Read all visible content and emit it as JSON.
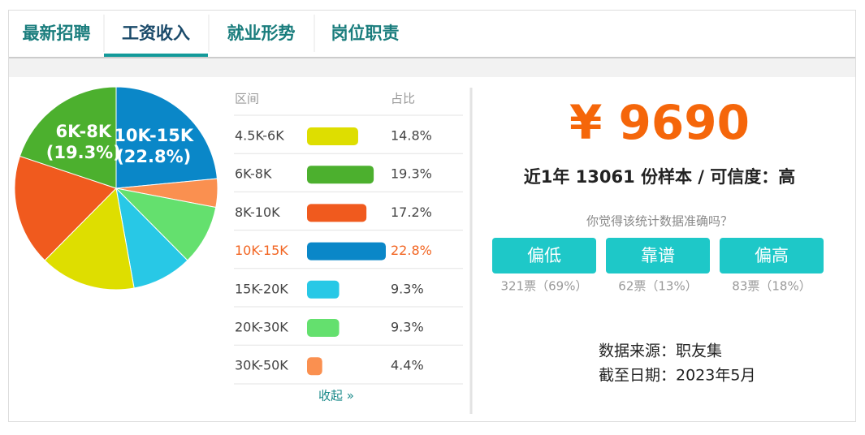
{
  "tabs": {
    "items": [
      "最新招聘",
      "工资收入",
      "就业形势",
      "岗位职责"
    ],
    "active": 1
  },
  "chart_data": {
    "type": "pie",
    "categories": [
      "4.5K-6K",
      "6K-8K",
      "8K-10K",
      "10K-15K",
      "15K-20K",
      "20K-30K",
      "30K-50K"
    ],
    "values": [
      14.8,
      19.3,
      17.2,
      22.8,
      9.3,
      9.3,
      4.4
    ],
    "value_labels": [
      "14.8%",
      "19.3%",
      "17.2%",
      "22.8%",
      "9.3%",
      "9.3%",
      "4.4%"
    ],
    "colors": [
      "#dede00",
      "#4cb02e",
      "#f05a1e",
      "#0a87c8",
      "#28c8e6",
      "#64e06e",
      "#fa9050"
    ],
    "slice_labels": [
      null,
      [
        "6K-8K",
        "(19.3%)"
      ],
      null,
      [
        "10K-15K",
        "(22.8%)"
      ],
      null,
      null,
      null
    ],
    "header": [
      "区间",
      "占比"
    ],
    "highlight": 3,
    "collapse": "收起 »"
  },
  "salary": {
    "amount": "¥ 9690",
    "summary": "近1年 13061 份样本 / 可信度：高"
  },
  "feedback": {
    "question": "你觉得该统计数据准确吗？",
    "options": [
      {
        "label": "偏低",
        "votes": "321票（69%）"
      },
      {
        "label": "靠谱",
        "votes": "62票（13%）"
      },
      {
        "label": "偏高",
        "votes": "83票（18%）"
      }
    ]
  },
  "source": {
    "origin": "数据来源：职友集",
    "date": "截至日期：2023年5月"
  }
}
